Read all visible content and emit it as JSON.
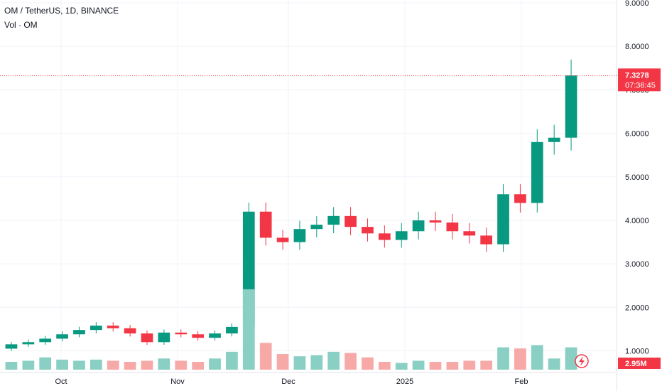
{
  "header": {
    "title": "OM / TetherUS, 1D, BINANCE",
    "volume_label": "Vol · OM"
  },
  "price_badge": {
    "price": "7.3278",
    "countdown": "07:36:45",
    "color": "#f23645"
  },
  "volume_badge": {
    "value": "2.95M",
    "color": "#f23645"
  },
  "colors": {
    "up": "#089981",
    "down": "#f23645",
    "up_vol": "#89cfc4",
    "down_vol": "#f7a9a7"
  },
  "chart_data": {
    "type": "candlestick",
    "y_axis": {
      "ticks": [
        "1.0000",
        "2.0000",
        "3.0000",
        "4.0000",
        "5.0000",
        "6.0000",
        "7.0000",
        "8.0000",
        "9.0000"
      ],
      "range": [
        0.6,
        9.0
      ]
    },
    "x_axis": {
      "ticks": [
        "Oct",
        "Nov",
        "Dec",
        "2025",
        "Feb"
      ]
    },
    "last_price": 7.3278,
    "volume_max_millions": 3.5,
    "weeks": [
      {
        "o": 1.05,
        "c": 1.15,
        "v": 0.35
      },
      {
        "o": 1.15,
        "c": 1.2,
        "v": 0.4
      },
      {
        "o": 1.2,
        "c": 1.28,
        "v": 0.55
      },
      {
        "o": 1.28,
        "c": 1.38,
        "v": 0.45
      },
      {
        "o": 1.38,
        "c": 1.48,
        "v": 0.4
      },
      {
        "o": 1.48,
        "c": 1.58,
        "v": 0.45
      },
      {
        "o": 1.58,
        "c": 1.52,
        "v": 0.4
      },
      {
        "o": 1.52,
        "c": 1.4,
        "v": 0.35
      },
      {
        "o": 1.4,
        "c": 1.2,
        "v": 0.4
      },
      {
        "o": 1.2,
        "c": 1.42,
        "v": 0.5
      },
      {
        "o": 1.42,
        "c": 1.38,
        "v": 0.4
      },
      {
        "o": 1.38,
        "c": 1.3,
        "v": 0.35
      },
      {
        "o": 1.3,
        "c": 1.4,
        "v": 0.5
      },
      {
        "o": 1.4,
        "c": 1.55,
        "v": 0.8
      },
      {
        "o": 1.55,
        "c": 4.2,
        "v": 3.6
      },
      {
        "o": 4.2,
        "c": 3.6,
        "v": 1.2
      },
      {
        "o": 3.6,
        "c": 3.5,
        "v": 0.7
      },
      {
        "o": 3.5,
        "c": 3.8,
        "v": 0.6
      },
      {
        "o": 3.8,
        "c": 3.9,
        "v": 0.65
      },
      {
        "o": 3.9,
        "c": 4.1,
        "v": 0.8
      },
      {
        "o": 4.1,
        "c": 3.85,
        "v": 0.75
      },
      {
        "o": 3.85,
        "c": 3.7,
        "v": 0.55
      },
      {
        "o": 3.7,
        "c": 3.55,
        "v": 0.35
      },
      {
        "o": 3.55,
        "c": 3.75,
        "v": 0.3
      },
      {
        "o": 3.75,
        "c": 4.0,
        "v": 0.4
      },
      {
        "o": 4.0,
        "c": 3.95,
        "v": 0.35
      },
      {
        "o": 3.95,
        "c": 3.75,
        "v": 0.35
      },
      {
        "o": 3.75,
        "c": 3.65,
        "v": 0.4
      },
      {
        "o": 3.65,
        "c": 3.45,
        "v": 0.4
      },
      {
        "o": 3.45,
        "c": 4.6,
        "v": 1.0
      },
      {
        "o": 4.6,
        "c": 4.4,
        "v": 0.95
      },
      {
        "o": 4.4,
        "c": 5.8,
        "v": 1.1
      },
      {
        "o": 5.8,
        "c": 5.9,
        "v": 0.5
      },
      {
        "o": 5.9,
        "c": 7.33,
        "v": 1.0
      }
    ]
  }
}
